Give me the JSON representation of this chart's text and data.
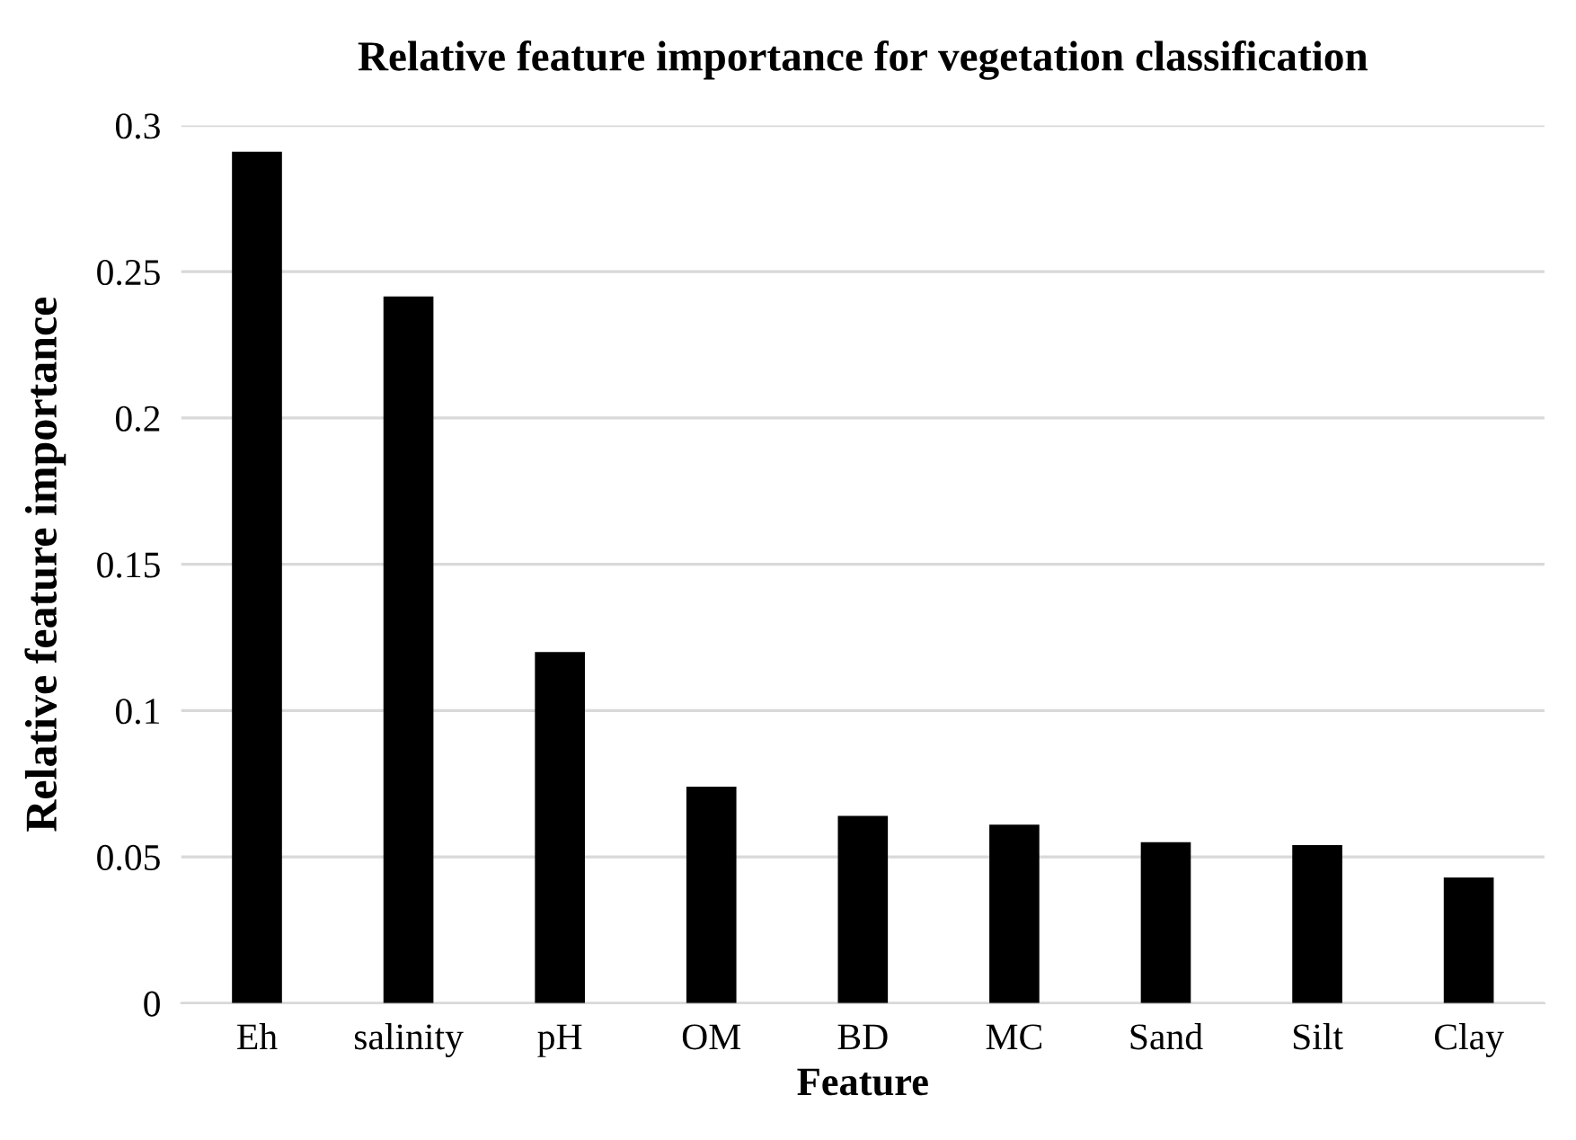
{
  "chart_data": {
    "type": "bar",
    "title": "Relative feature importance for vegetation classification",
    "xlabel": "Feature",
    "ylabel": "Relative feature importance",
    "categories": [
      "Eh",
      "salinity",
      "pH",
      "OM",
      "BD",
      "MC",
      "Sand",
      "Silt",
      "Clay"
    ],
    "values": [
      0.291,
      0.2415,
      0.12,
      0.074,
      0.064,
      0.061,
      0.055,
      0.054,
      0.043
    ],
    "color": "#000000",
    "ylim": [
      0,
      0.3
    ],
    "yticks": [
      0,
      0.05,
      0.1,
      0.15,
      0.2,
      0.25,
      0.3
    ],
    "grid": "y",
    "legend": false
  }
}
